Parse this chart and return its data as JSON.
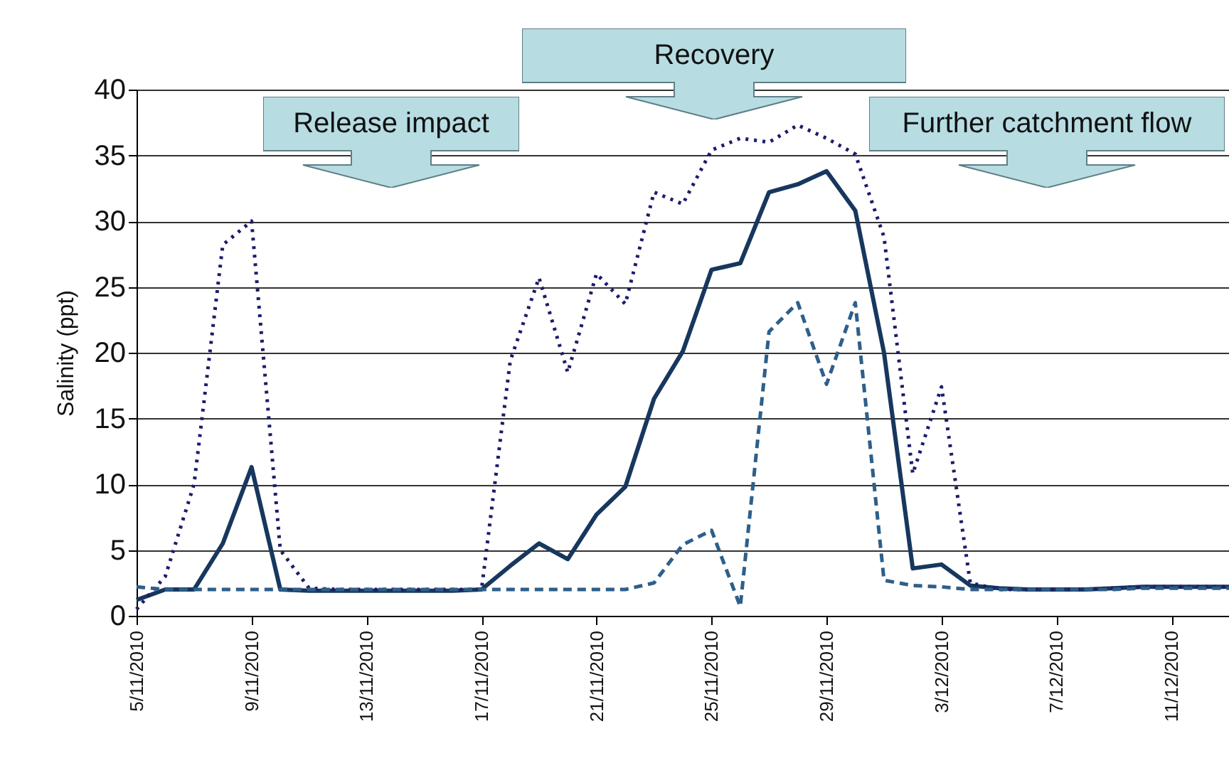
{
  "chart_data": {
    "type": "line",
    "ylabel": "Salinity (ppt)",
    "annotations": [
      "Release impact",
      "Recovery",
      "Further catchment flow"
    ],
    "x": [
      "2010-11-05",
      "2010-11-06",
      "2010-11-07",
      "2010-11-08",
      "2010-11-09",
      "2010-11-10",
      "2010-11-11",
      "2010-11-12",
      "2010-11-13",
      "2010-11-14",
      "2010-11-15",
      "2010-11-16",
      "2010-11-17",
      "2010-11-18",
      "2010-11-19",
      "2010-11-20",
      "2010-11-21",
      "2010-11-22",
      "2010-11-23",
      "2010-11-24",
      "2010-11-25",
      "2010-11-26",
      "2010-11-27",
      "2010-11-28",
      "2010-11-29",
      "2010-11-30",
      "2010-12-01",
      "2010-12-02",
      "2010-12-03",
      "2010-12-04",
      "2010-12-05",
      "2010-12-06",
      "2010-12-07",
      "2010-12-08",
      "2010-12-09",
      "2010-12-10",
      "2010-12-11",
      "2010-12-12",
      "2010-12-13"
    ],
    "series": [
      {
        "color": "#17375e",
        "line_style": "solid",
        "values": [
          1.2,
          2.0,
          2.0,
          5.5,
          11.3,
          2.0,
          1.9,
          1.9,
          1.9,
          1.9,
          1.9,
          1.9,
          2.0,
          3.8,
          5.5,
          4.3,
          7.7,
          9.8,
          16.5,
          20.1,
          26.3,
          26.8,
          32.2,
          32.8,
          33.8,
          30.8,
          20.0,
          3.6,
          3.9,
          2.3,
          2.1,
          2.0,
          2.0,
          2.0,
          2.1,
          2.2,
          2.2,
          2.2,
          2.2
        ]
      },
      {
        "color": "#1c1c6b",
        "line_style": "dotted",
        "values": [
          0.5,
          3.0,
          10.0,
          28.2,
          30.0,
          5.0,
          2.1,
          2.0,
          2.0,
          2.0,
          2.0,
          2.0,
          2.0,
          19.4,
          25.7,
          18.5,
          26.0,
          23.7,
          32.2,
          31.3,
          35.4,
          36.3,
          36.0,
          37.3,
          36.3,
          35.1,
          28.8,
          10.8,
          17.4,
          2.5,
          2.0,
          2.0,
          2.0,
          2.0,
          2.1,
          2.2,
          2.2,
          2.2,
          2.2
        ]
      },
      {
        "color": "#2e5f8a",
        "line_style": "dashed",
        "values": [
          2.2,
          2.0,
          2.0,
          2.0,
          2.0,
          2.0,
          2.0,
          2.0,
          2.0,
          2.0,
          2.0,
          2.0,
          2.0,
          2.0,
          2.0,
          2.0,
          2.0,
          2.0,
          2.5,
          5.4,
          6.5,
          0.7,
          21.6,
          23.8,
          17.6,
          23.8,
          2.7,
          2.3,
          2.2,
          2.0,
          2.0,
          2.0,
          2.0,
          2.0,
          2.0,
          2.1,
          2.1,
          2.1,
          2.1
        ]
      }
    ],
    "xlim": [
      "2010-11-05",
      "2010-12-13"
    ],
    "xticks": [
      {
        "value": "2010-11-05",
        "label": "5/11/2010"
      },
      {
        "value": "2010-11-09",
        "label": "9/11/2010"
      },
      {
        "value": "2010-11-13",
        "label": "13/11/2010"
      },
      {
        "value": "2010-11-17",
        "label": "17/11/2010"
      },
      {
        "value": "2010-11-21",
        "label": "21/11/2010"
      },
      {
        "value": "2010-11-25",
        "label": "25/11/2010"
      },
      {
        "value": "2010-11-29",
        "label": "29/11/2010"
      },
      {
        "value": "2010-12-03",
        "label": "3/12/2010"
      },
      {
        "value": "2010-12-07",
        "label": "7/12/2010"
      },
      {
        "value": "2010-12-11",
        "label": "11/12/2010"
      }
    ],
    "ylim": [
      0,
      40
    ],
    "yticks": [
      0,
      5,
      10,
      15,
      20,
      25,
      30,
      35,
      40
    ],
    "grid": "y"
  }
}
